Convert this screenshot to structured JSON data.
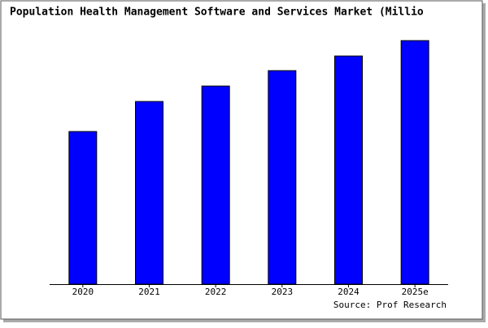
{
  "chart_data": {
    "type": "bar",
    "title": "Population Health Management Software and Services Market (Millio",
    "categories": [
      "2020",
      "2021",
      "2022",
      "2023",
      "2024",
      "2025e"
    ],
    "values": [
      188,
      225,
      244,
      263,
      281,
      300
    ],
    "color": "#0000ff",
    "ylim": [
      0,
      300
    ],
    "source": "Source: Prof Research"
  }
}
